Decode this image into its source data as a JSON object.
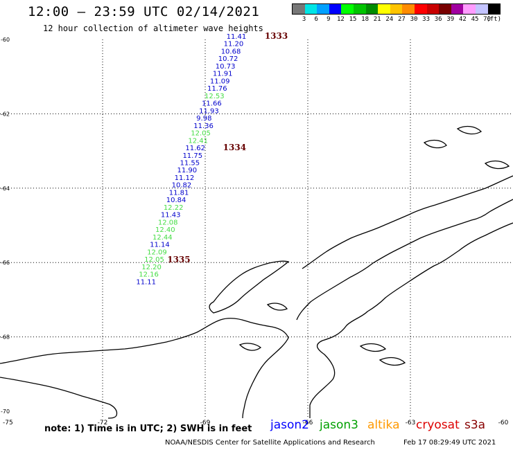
{
  "title": "12:00 – 23:59 UTC 02/14/2021",
  "subtitle": "12 hour collection of altimeter wave heights",
  "color_scale": {
    "colors": [
      "#777777",
      "#00e5e5",
      "#00a0ff",
      "#0000ff",
      "#00ff00",
      "#00c400",
      "#008c00",
      "#ffff00",
      "#ffc400",
      "#ff8c00",
      "#ff0000",
      "#c80000",
      "#780000",
      "#a000a0",
      "#ff9cff",
      "#c4c4ff",
      "#000000"
    ],
    "labels": [
      "3",
      "6",
      "9",
      "12",
      "15",
      "18",
      "21",
      "24",
      "27",
      "30",
      "33",
      "36",
      "39",
      "42",
      "45",
      "70",
      "(ft)"
    ]
  },
  "lat_labels": [
    "-60",
    "-62",
    "-64",
    "-66",
    "-68",
    "-70"
  ],
  "lon_labels": [
    "-75",
    "-72",
    "-69",
    "-66",
    "-63",
    "-60"
  ],
  "wave_heights": [
    {
      "lat": -59.98,
      "lon": -68.38,
      "value": "11.41",
      "sat": "jason2"
    },
    {
      "lat": -60.18,
      "lon": -68.46,
      "value": "11.20",
      "sat": "jason2"
    },
    {
      "lat": -60.38,
      "lon": -68.54,
      "value": "10.68",
      "sat": "jason2"
    },
    {
      "lat": -60.58,
      "lon": -68.62,
      "value": "10.72",
      "sat": "jason2"
    },
    {
      "lat": -60.78,
      "lon": -68.7,
      "value": "10.73",
      "sat": "jason2"
    },
    {
      "lat": -60.98,
      "lon": -68.78,
      "value": "11.91",
      "sat": "jason2"
    },
    {
      "lat": -61.18,
      "lon": -68.86,
      "value": "11.09",
      "sat": "jason2"
    },
    {
      "lat": -61.38,
      "lon": -68.94,
      "value": "11.76",
      "sat": "jason2"
    },
    {
      "lat": -61.58,
      "lon": -69.02,
      "value": "12.53",
      "sat": "jason3"
    },
    {
      "lat": -61.78,
      "lon": -69.1,
      "value": "11.66",
      "sat": "jason2"
    },
    {
      "lat": -61.98,
      "lon": -69.18,
      "value": "11.93",
      "sat": "jason2"
    },
    {
      "lat": -62.18,
      "lon": -69.26,
      "value": "9.98",
      "sat": "jason2"
    },
    {
      "lat": -62.38,
      "lon": -69.34,
      "value": "11.36",
      "sat": "jason2"
    },
    {
      "lat": -62.58,
      "lon": -69.42,
      "value": "12.05",
      "sat": "jason3"
    },
    {
      "lat": -62.78,
      "lon": -69.5,
      "value": "12.41",
      "sat": "jason3"
    },
    {
      "lat": -62.98,
      "lon": -69.58,
      "value": "11.62",
      "sat": "jason2"
    },
    {
      "lat": -63.18,
      "lon": -69.66,
      "value": "11.75",
      "sat": "jason2"
    },
    {
      "lat": -63.38,
      "lon": -69.74,
      "value": "11.55",
      "sat": "jason2"
    },
    {
      "lat": -63.58,
      "lon": -69.82,
      "value": "11.90",
      "sat": "jason2"
    },
    {
      "lat": -63.78,
      "lon": -69.9,
      "value": "11.12",
      "sat": "jason2"
    },
    {
      "lat": -63.98,
      "lon": -69.98,
      "value": "10.82",
      "sat": "jason2"
    },
    {
      "lat": -64.18,
      "lon": -70.06,
      "value": "11.81",
      "sat": "jason2"
    },
    {
      "lat": -64.38,
      "lon": -70.14,
      "value": "10.84",
      "sat": "jason2"
    },
    {
      "lat": -64.58,
      "lon": -70.22,
      "value": "12.22",
      "sat": "jason3"
    },
    {
      "lat": -64.78,
      "lon": -70.3,
      "value": "11.43",
      "sat": "jason2"
    },
    {
      "lat": -64.98,
      "lon": -70.38,
      "value": "12.08",
      "sat": "jason3"
    },
    {
      "lat": -65.18,
      "lon": -70.46,
      "value": "12.40",
      "sat": "jason3"
    },
    {
      "lat": -65.38,
      "lon": -70.54,
      "value": "12.44",
      "sat": "jason3"
    },
    {
      "lat": -65.58,
      "lon": -70.62,
      "value": "11.14",
      "sat": "jason2"
    },
    {
      "lat": -65.78,
      "lon": -70.7,
      "value": "12.09",
      "sat": "jason3"
    },
    {
      "lat": -65.98,
      "lon": -70.78,
      "value": "12.05",
      "sat": "jason3"
    },
    {
      "lat": -66.18,
      "lon": -70.86,
      "value": "12.20",
      "sat": "jason3"
    },
    {
      "lat": -66.38,
      "lon": -70.94,
      "value": "12.16",
      "sat": "jason3"
    },
    {
      "lat": -66.58,
      "lon": -71.02,
      "value": "11.11",
      "sat": "jason2"
    }
  ],
  "orbit_labels": [
    {
      "lat": -59.98,
      "lon": -67.26,
      "value": "1333"
    },
    {
      "lat": -62.98,
      "lon": -68.48,
      "value": "1334"
    },
    {
      "lat": -66.0,
      "lon": -70.11,
      "value": "1335"
    }
  ],
  "sat_colors": {
    "jason2": "#0000cc",
    "jason3": "#44dd44"
  },
  "note": "note: 1) Time is in UTC; 2) SWH is in feet",
  "legend": [
    {
      "name": "jason2",
      "color": "#0000ff"
    },
    {
      "name": "jason3",
      "color": "#00a000"
    },
    {
      "name": "altika",
      "color": "#ff9900"
    },
    {
      "name": "cryosat",
      "color": "#dd0000"
    },
    {
      "name": "s3a",
      "color": "#880000"
    }
  ],
  "footer_left": "NOAA/NESDIS Center for Satellite Applications and Research",
  "footer_right": "Feb 17 08:29:49 UTC 2021"
}
